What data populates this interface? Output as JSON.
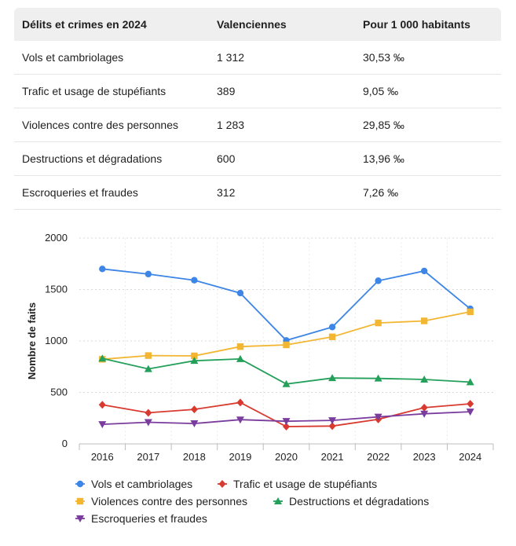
{
  "table": {
    "headers": [
      "Délits et crimes en 2024",
      "Valenciennes",
      "Pour 1 000 habitants"
    ],
    "rows": [
      [
        "Vols et cambriolages",
        "1 312",
        "30,53 ‰"
      ],
      [
        "Trafic et usage de stupéfiants",
        "389",
        "9,05 ‰"
      ],
      [
        "Violences contre des personnes",
        "1 283",
        "29,85 ‰"
      ],
      [
        "Destructions et dégradations",
        "600",
        "13,96 ‰"
      ],
      [
        "Escroqueries et fraudes",
        "312",
        "7,26 ‰"
      ]
    ]
  },
  "chart_data": {
    "type": "line",
    "title": "",
    "xlabel": "",
    "ylabel": "Nombre de faits",
    "ylim": [
      0,
      2000
    ],
    "yticks": [
      0,
      500,
      1000,
      1500,
      2000
    ],
    "grid": true,
    "legend_position": "bottom",
    "x": [
      "2016",
      "2017",
      "2018",
      "2019",
      "2020",
      "2021",
      "2022",
      "2023",
      "2024"
    ],
    "series": [
      {
        "name": "Vols et cambriolages",
        "color": "#3d85e6",
        "marker": "circle",
        "values": [
          1700,
          1650,
          1590,
          1465,
          1005,
          1135,
          1585,
          1680,
          1312
        ]
      },
      {
        "name": "Trafic et usage de stupéfiants",
        "color": "#d93a2f",
        "marker": "diamond",
        "values": [
          380,
          302,
          335,
          402,
          168,
          173,
          238,
          352,
          389
        ]
      },
      {
        "name": "Violences contre des personnes",
        "color": "#f2b632",
        "marker": "square",
        "values": [
          822,
          858,
          855,
          945,
          962,
          1040,
          1175,
          1195,
          1283
        ]
      },
      {
        "name": "Destructions et dégradations",
        "color": "#24a05a",
        "marker": "triangle-up",
        "values": [
          830,
          728,
          808,
          825,
          582,
          640,
          636,
          626,
          600
        ]
      },
      {
        "name": "Escroqueries et fraudes",
        "color": "#7a3d9e",
        "marker": "triangle-down",
        "values": [
          190,
          210,
          198,
          235,
          220,
          228,
          262,
          292,
          312
        ]
      }
    ]
  }
}
